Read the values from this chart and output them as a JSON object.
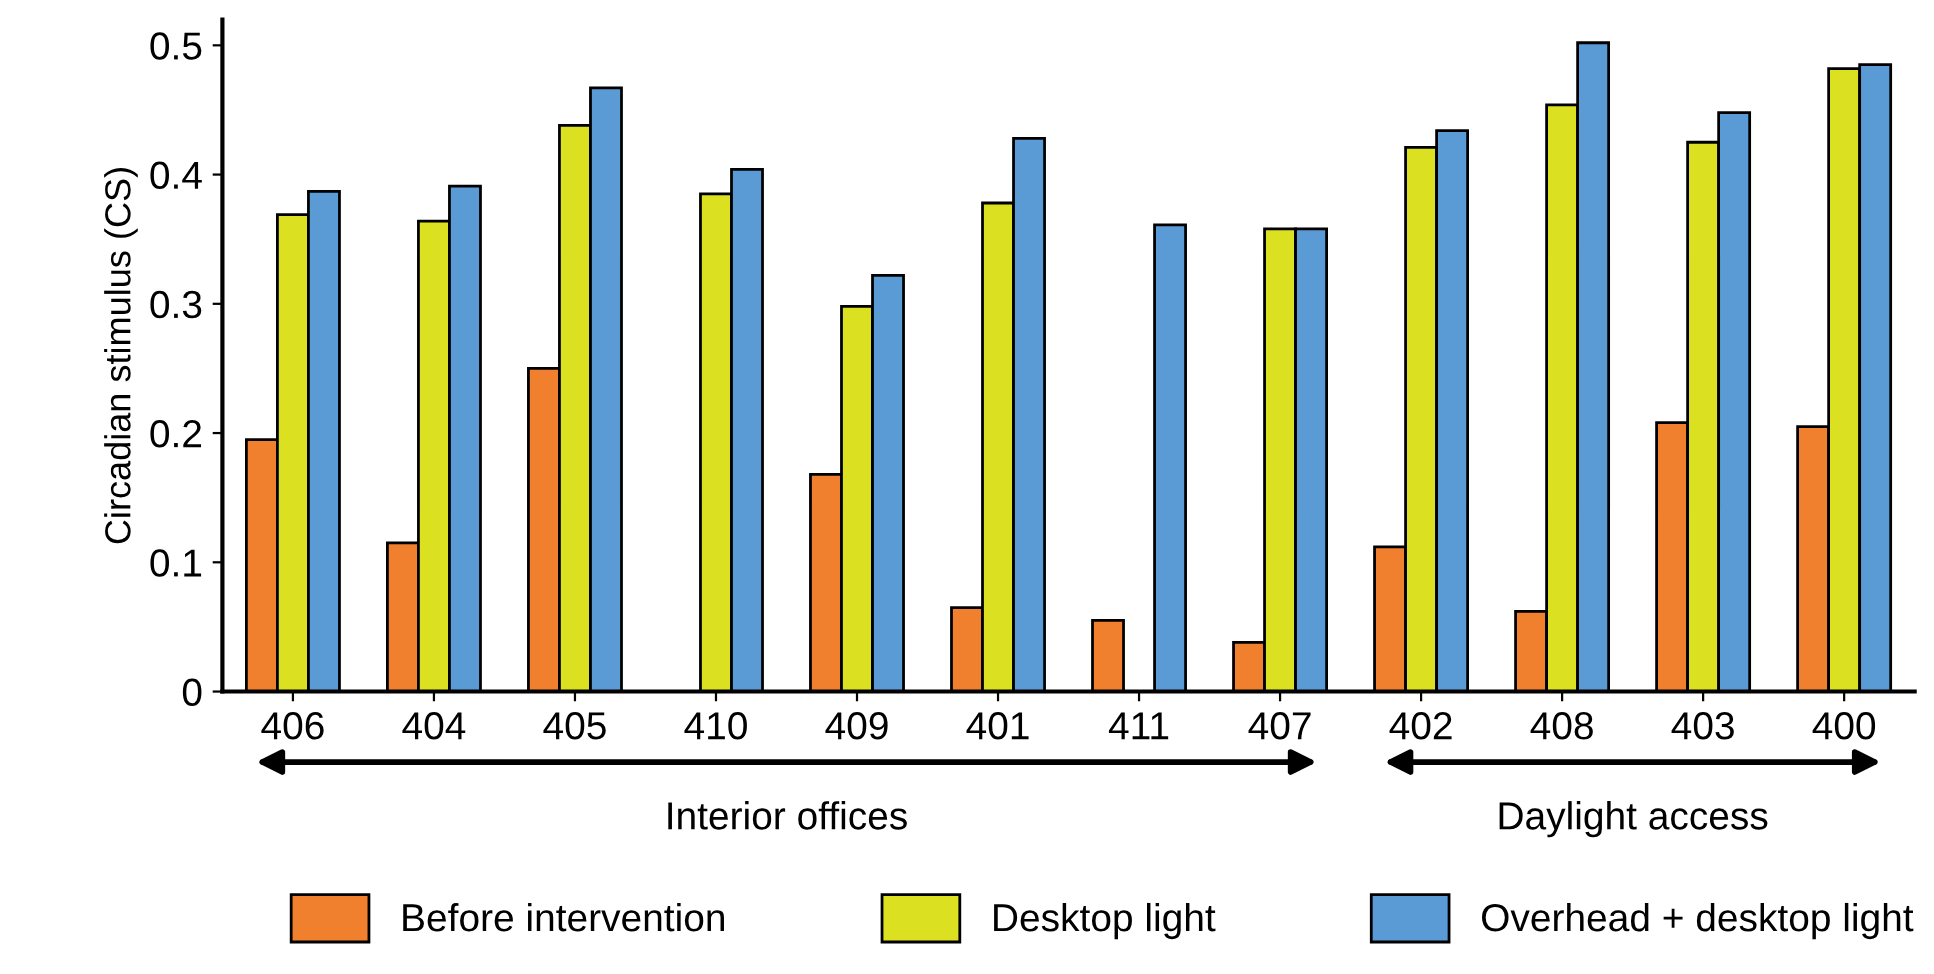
{
  "chart_data": {
    "type": "bar",
    "ylabel": "Circadian stimulus (CS)",
    "categories": [
      "406",
      "404",
      "405",
      "410",
      "409",
      "401",
      "411",
      "407",
      "402",
      "408",
      "403",
      "400"
    ],
    "series": [
      {
        "name": "Before intervention",
        "color": "#f07f2e",
        "values": [
          0.195,
          0.115,
          0.25,
          null,
          0.168,
          0.065,
          0.055,
          0.038,
          0.112,
          0.062,
          0.208,
          0.205
        ]
      },
      {
        "name": "Desktop light",
        "color": "#dbe021",
        "values": [
          0.369,
          0.364,
          0.438,
          0.385,
          0.298,
          0.378,
          null,
          0.358,
          0.421,
          0.454,
          0.425,
          0.482
        ]
      },
      {
        "name": "Overhead + desktop light",
        "color": "#5b9bd5",
        "values": [
          0.387,
          0.391,
          0.467,
          0.404,
          0.322,
          0.428,
          0.361,
          0.358,
          0.434,
          0.502,
          0.448,
          0.485
        ]
      }
    ],
    "ylim": [
      0,
      0.52
    ],
    "yticks": [
      {
        "value": 0,
        "label": "0"
      },
      0.1,
      0.2,
      0.3,
      0.4,
      0.5
    ],
    "annotations": [
      "Interior offices",
      "Daylight access"
    ],
    "grid": false,
    "legend": "bottom"
  }
}
